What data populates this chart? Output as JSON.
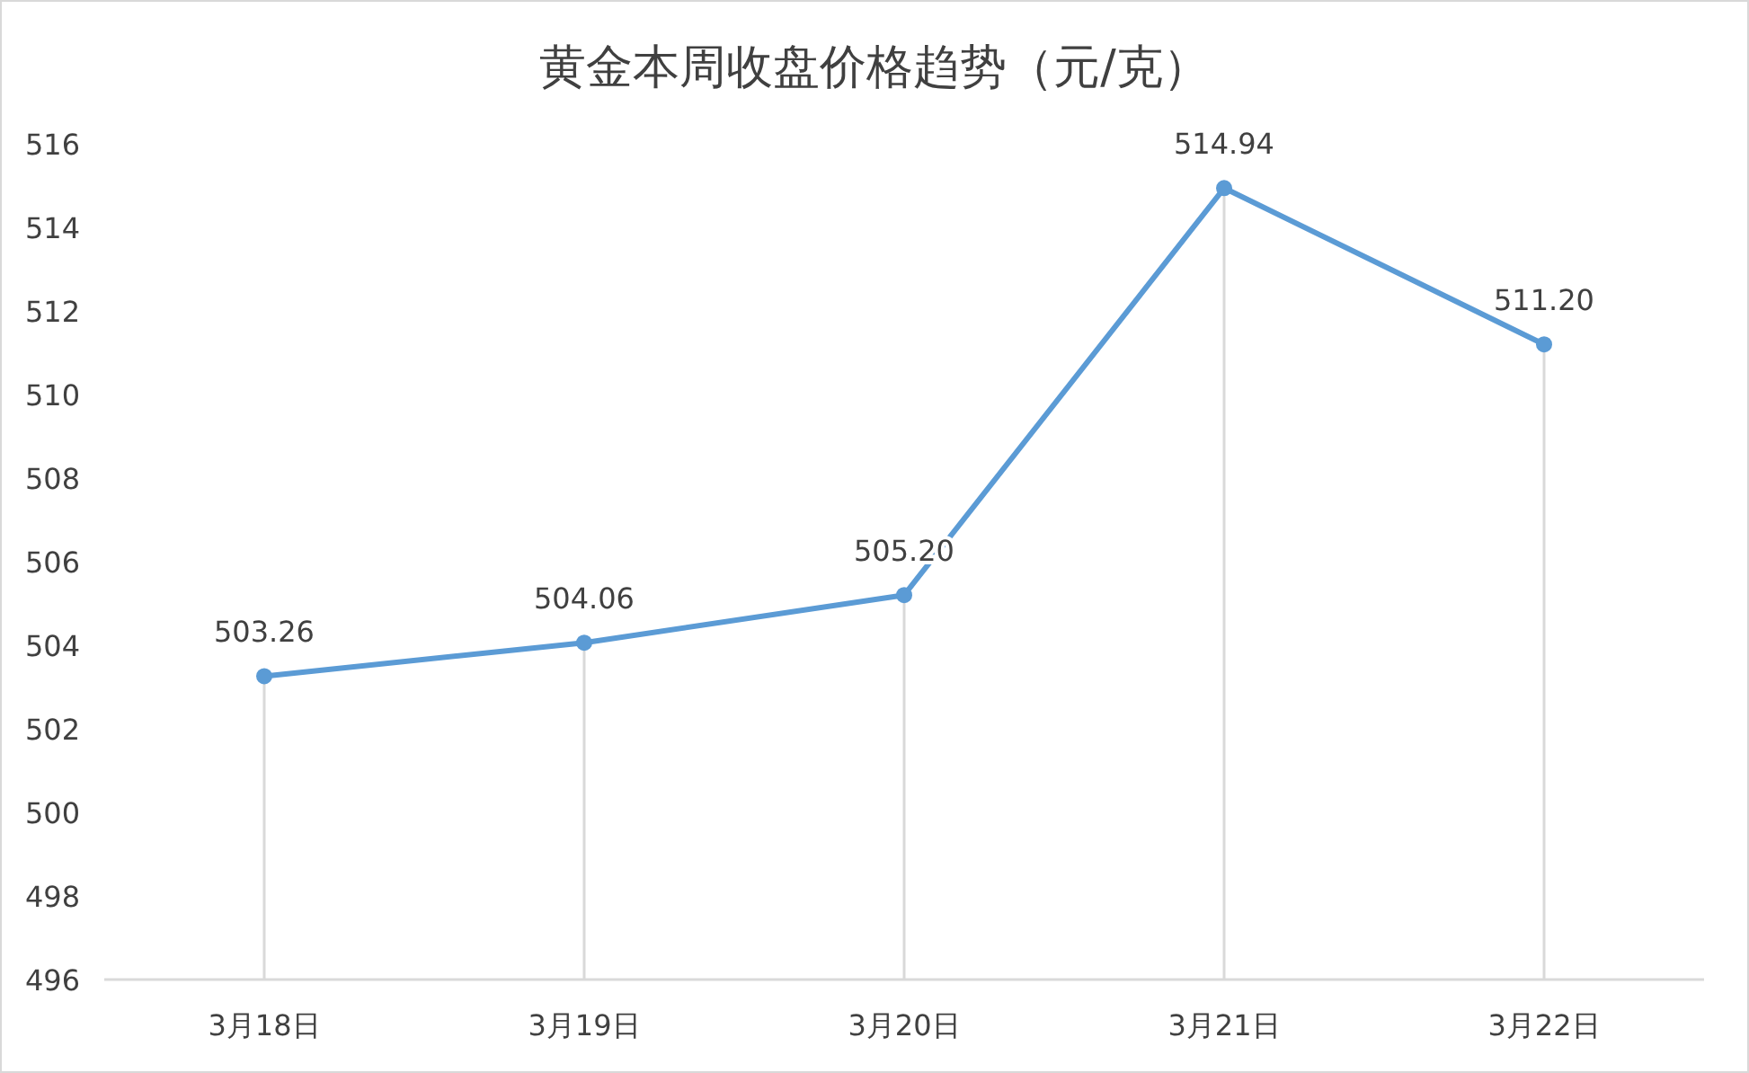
{
  "chart_data": {
    "type": "line",
    "title": "黄金本周收盘价格趋势（元/克）",
    "categories": [
      "3月18日",
      "3月19日",
      "3月20日",
      "3月21日",
      "3月22日"
    ],
    "series": [
      {
        "color": "#5b9bd5",
        "values": [
          503.26,
          504.06,
          505.2,
          514.94,
          511.2
        ],
        "value_labels": [
          "503.26",
          "504.06",
          "505.20",
          "514.94",
          "511.20"
        ]
      }
    ],
    "ylim": [
      496,
      516
    ],
    "yticks": [
      496,
      498,
      500,
      502,
      504,
      506,
      508,
      510,
      512,
      514,
      516
    ],
    "grid": "x",
    "marker": "circle",
    "line_style": "solid"
  }
}
